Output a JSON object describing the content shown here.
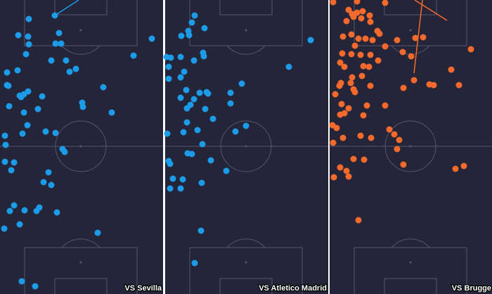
{
  "chart_data": [
    {
      "type": "scatter",
      "title": "VS Sevilla",
      "color": "#1b9be8",
      "xlim": [
        0,
        232
      ],
      "ylim": [
        418,
        0
      ],
      "x": [
        41,
        78,
        26,
        40,
        84,
        41,
        79,
        87,
        216,
        37,
        190,
        73,
        94,
        25,
        108,
        10,
        99,
        10,
        12,
        147,
        40,
        34,
        28,
        60,
        30,
        117,
        118,
        13,
        54,
        34,
        159,
        39,
        32,
        65,
        79,
        7,
        8,
        89,
        92,
        20,
        7,
        16,
        69,
        62,
        73,
        20,
        14,
        35,
        56,
        81,
        52,
        28,
        6,
        139,
        31,
        50
      ],
      "y": [
        27,
        22,
        50,
        52,
        47,
        63,
        62,
        62,
        55,
        77,
        79,
        86,
        86,
        100,
        98,
        103,
        102,
        121,
        122,
        124,
        130,
        134,
        136,
        137,
        138,
        146,
        152,
        151,
        155,
        160,
        160,
        178,
        190,
        187,
        189,
        193,
        206,
        212,
        216,
        231,
        230,
        242,
        245,
        259,
        263,
        292,
        300,
        299,
        295,
        302,
        300,
        319,
        325,
        331,
        400,
        407
      ],
      "lines": [
        {
          "x": [
            78,
            112
          ],
          "y": [
            22,
            0
          ]
        }
      ]
    },
    {
      "type": "scatter",
      "title": "VS Atletico Madrid",
      "color": "#1b9be8",
      "xlim": [
        0,
        232
      ],
      "ylim": [
        418,
        0
      ],
      "x": [
        42,
        38,
        33,
        23,
        34,
        56,
        207,
        54,
        55,
        2,
        8,
        22,
        41,
        5,
        27,
        176,
        22,
        5,
        109,
        30,
        49,
        59,
        61,
        93,
        22,
        41,
        36,
        31,
        93,
        57,
        68,
        31,
        115,
        26,
        46,
        100,
        3,
        53,
        32,
        38,
        5,
        7,
        65,
        87,
        11,
        25,
        52,
        7,
        22,
        51,
        42
      ],
      "y": [
        22,
        32,
        44,
        51,
        50,
        40,
        57,
        75,
        80,
        81,
        82,
        81,
        86,
        95,
        102,
        95,
        110,
        112,
        119,
        128,
        132,
        131,
        133,
        132,
        139,
        141,
        149,
        154,
        147,
        155,
        169,
        174,
        179,
        188,
        185,
        187,
        190,
        205,
        218,
        219,
        229,
        233,
        228,
        243,
        254,
        255,
        260,
        268,
        268,
        328,
        374
      ],
      "lines": []
    },
    {
      "type": "scatter",
      "title": "VS Brugge",
      "color": "#f4692c",
      "xlim": [
        0,
        232
      ],
      "ylim": [
        418,
        0
      ],
      "x": [
        5,
        39,
        79,
        27,
        32,
        39,
        47,
        34,
        45,
        57,
        24,
        58,
        68,
        71,
        31,
        41,
        19,
        51,
        61,
        36,
        79,
        96,
        122,
        133,
        201,
        18,
        31,
        44,
        58,
        104,
        69,
        15,
        21,
        48,
        56,
        116,
        173,
        32,
        46,
        30,
        16,
        14,
        58,
        34,
        120,
        142,
        148,
        105,
        184,
        8,
        36,
        53,
        79,
        17,
        27,
        21,
        15,
        48,
        4,
        10,
        85,
        92,
        19,
        44,
        59,
        99,
        5,
        34,
        49,
        96,
        15,
        24,
        105,
        179,
        191,
        6,
        27,
        41
      ],
      "y": [
        3,
        2,
        4,
        14,
        20,
        18,
        16,
        24,
        26,
        22,
        30,
        31,
        44,
        48,
        49,
        55,
        52,
        55,
        57,
        65,
        66,
        57,
        54,
        53,
        70,
        76,
        77,
        78,
        78,
        74,
        86,
        89,
        95,
        94,
        95,
        80,
        99,
        110,
        108,
        118,
        118,
        122,
        122,
        127,
        114,
        120,
        121,
        125,
        121,
        134,
        131,
        150,
        150,
        148,
        154,
        161,
        163,
        164,
        178,
        182,
        184,
        191,
        196,
        193,
        196,
        199,
        203,
        226,
        227,
        212,
        238,
        243,
        234,
        240,
        236,
        252,
        251,
        313
      ],
      "lines": [
        {
          "x": [
            121,
            167
          ],
          "y": [
            0,
            29
          ]
        },
        {
          "x": [
            132,
            120
          ],
          "y": [
            0,
            104
          ]
        }
      ]
    }
  ]
}
